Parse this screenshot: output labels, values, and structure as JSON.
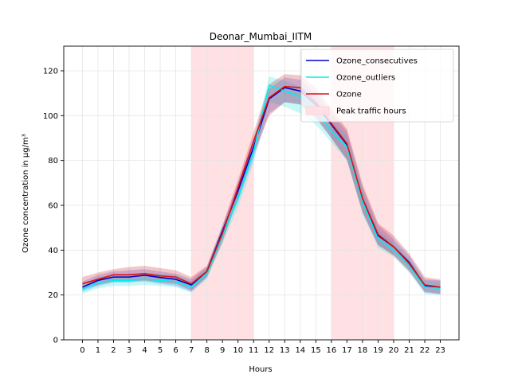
{
  "chart_data": {
    "type": "line",
    "title": "Deonar_Mumbai_IITM",
    "xlabel": "Hours",
    "ylabel": "Ozone concentration in µg/m³",
    "x": [
      0,
      1,
      2,
      3,
      4,
      5,
      6,
      7,
      8,
      9,
      10,
      11,
      12,
      13,
      14,
      15,
      16,
      17,
      18,
      19,
      20,
      21,
      22,
      23
    ],
    "xlim": [
      -1.2,
      24.2
    ],
    "ylim": [
      0,
      131
    ],
    "yticks": [
      0,
      20,
      40,
      60,
      80,
      100,
      120
    ],
    "grid": true,
    "legend_position": "top-right",
    "shaded_regions": [
      {
        "name": "Peak traffic hours",
        "x_start": 7,
        "x_end": 11,
        "color": "#ffe0e3"
      },
      {
        "name": "Peak traffic hours",
        "x_start": 16,
        "x_end": 20,
        "color": "#ffe0e3"
      }
    ],
    "series": [
      {
        "name": "Ozone_consecutives",
        "color": "#0000cc",
        "values": [
          23.5,
          26.5,
          28,
          28,
          28.8,
          27.8,
          27,
          24.5,
          30.5,
          48.5,
          66.5,
          86,
          107.5,
          112.5,
          111,
          105,
          96,
          87,
          63,
          46.5,
          41.5,
          34.5,
          24.2,
          23.3
        ],
        "band_low": [
          21.5,
          24,
          25.5,
          25.5,
          26,
          25,
          24,
          21.5,
          28,
          45,
          62,
          81,
          101,
          106,
          105,
          99,
          90,
          80,
          57,
          42,
          38,
          31,
          21,
          20.3
        ],
        "band_high": [
          26,
          29,
          30.5,
          31,
          31.5,
          30.5,
          29.5,
          27,
          32.5,
          51,
          70,
          90,
          112,
          117,
          116,
          110,
          101,
          93,
          68,
          51,
          45,
          37.5,
          27,
          26.5
        ]
      },
      {
        "name": "Ozone_outliers",
        "color": "#00eeee",
        "values": [
          22.5,
          25.5,
          26.5,
          26.5,
          27,
          26.5,
          26,
          23.5,
          29.5,
          46.5,
          63,
          84,
          113.5,
          111,
          108.5,
          102,
          93,
          86,
          61.5,
          45,
          40,
          33,
          23.5,
          23
        ],
        "band_low": [
          20.5,
          23,
          24,
          24,
          24.5,
          24,
          23.5,
          21,
          27,
          43,
          59,
          79,
          106,
          104,
          101,
          96,
          88,
          80,
          56,
          41,
          37,
          30,
          20.5,
          20
        ],
        "band_high": [
          24.5,
          28,
          29,
          29.5,
          30,
          29.5,
          29,
          26,
          32,
          50,
          67,
          88,
          117.5,
          115.5,
          113,
          107,
          98,
          91,
          66.5,
          49,
          43.5,
          36,
          26.5,
          26
        ]
      },
      {
        "name": "Ozone",
        "color": "#dd1111",
        "values": [
          25,
          27,
          29,
          29,
          29.5,
          28.5,
          28,
          25,
          30.5,
          47.5,
          68,
          88.5,
          108,
          113,
          112.5,
          106,
          96.5,
          87.5,
          63,
          47,
          41.5,
          34,
          24.5,
          23.5
        ],
        "band_low": [
          22.5,
          24.5,
          26,
          26,
          26.5,
          25.5,
          25,
          22,
          28,
          43.5,
          63.5,
          83,
          100,
          106,
          105,
          99,
          90,
          80.5,
          57,
          42.5,
          37.5,
          30.5,
          21.5,
          20.5
        ],
        "band_high": [
          28,
          30,
          31.5,
          32.5,
          33,
          32,
          31,
          28,
          33,
          51,
          71.5,
          92.5,
          114,
          118.5,
          118,
          112.5,
          103,
          94,
          69.5,
          52,
          46.5,
          38.5,
          28,
          27
        ]
      }
    ],
    "legend_entries": [
      "Ozone_consecutives",
      "Ozone_outliers",
      "Ozone",
      "Peak traffic hours"
    ]
  }
}
